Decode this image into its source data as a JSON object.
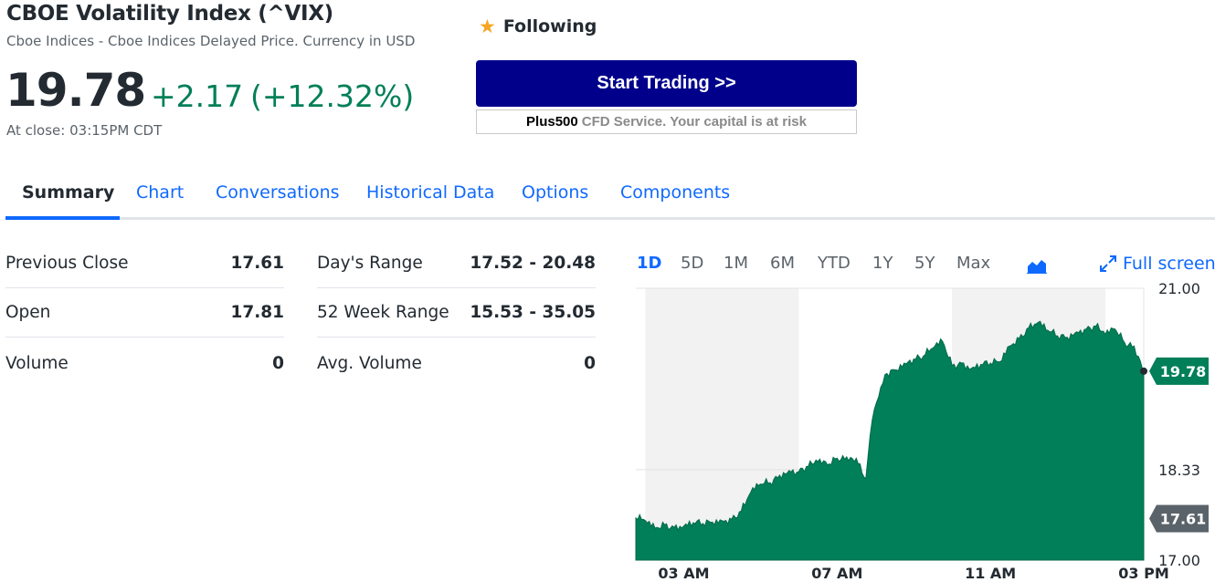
{
  "quote": {
    "title": "CBOE Volatility Index (^VIX)",
    "subtitle": "Cboe Indices - Cboe Indices Delayed Price. Currency in USD",
    "price": "19.78",
    "change": "+2.17",
    "change_pct": "(+12.32%)",
    "close_time": "At close: 03:15PM CDT"
  },
  "following": {
    "star_icon": "star-icon",
    "label": "Following"
  },
  "ad": {
    "button_label": "Start Trading >>",
    "brand": "Plus500",
    "disclaimer": "CFD Service. Your capital is at risk"
  },
  "tabs": [
    {
      "label": "Summary",
      "active": true
    },
    {
      "label": "Chart"
    },
    {
      "label": "Conversations"
    },
    {
      "label": "Historical Data"
    },
    {
      "label": "Options"
    },
    {
      "label": "Components"
    }
  ],
  "stats_left": [
    {
      "label": "Previous Close",
      "value": "17.61"
    },
    {
      "label": "Open",
      "value": "17.81"
    },
    {
      "label": "Volume",
      "value": "0"
    }
  ],
  "stats_right": [
    {
      "label": "Day's Range",
      "value": "17.52 - 20.48"
    },
    {
      "label": "52 Week Range",
      "value": "15.53 - 35.05"
    },
    {
      "label": "Avg. Volume",
      "value": "0"
    }
  ],
  "chart_controls": {
    "ranges": [
      "1D",
      "5D",
      "1M",
      "6M",
      "YTD",
      "1Y",
      "5Y",
      "Max"
    ],
    "active_range": "1D",
    "chart_type_icon": "area-chart-icon",
    "fullscreen_icon": "expand-icon",
    "fullscreen_label": "Full screen"
  },
  "colors": {
    "accent": "#0f69ff",
    "positive": "#007f58",
    "ad_button": "#00008b",
    "star": "#f5a623",
    "prev_close_tag": "#5b636a"
  },
  "chart_data": {
    "type": "area",
    "ylim": [
      17.0,
      21.0
    ],
    "y_ticks": [
      "21.00",
      "18.33",
      "17.00"
    ],
    "x_ticks": [
      "03 AM",
      "07 AM",
      "11 AM",
      "03 PM"
    ],
    "current_label": "19.78",
    "prev_close_label": "17.61",
    "current_value": 19.78,
    "prev_close_value": 17.61,
    "shaded_sessions": [
      [
        "02:15",
        "06:15"
      ],
      [
        "10:15",
        "14:15"
      ]
    ],
    "x_time": [
      "02:00",
      "02:15",
      "02:30",
      "02:45",
      "03:00",
      "03:15",
      "03:30",
      "03:45",
      "04:00",
      "04:15",
      "04:30",
      "04:45",
      "05:00",
      "05:15",
      "05:30",
      "05:45",
      "06:00",
      "06:15",
      "06:30",
      "06:45",
      "07:00",
      "07:15",
      "07:30",
      "07:45",
      "08:00",
      "08:10",
      "08:20",
      "08:30",
      "08:45",
      "09:00",
      "09:15",
      "09:30",
      "09:45",
      "10:00",
      "10:15",
      "10:30",
      "10:45",
      "11:00",
      "11:15",
      "11:30",
      "11:45",
      "12:00",
      "12:15",
      "12:30",
      "12:45",
      "13:00",
      "13:15",
      "13:30",
      "13:45",
      "14:00",
      "14:15",
      "14:30",
      "14:45",
      "15:00",
      "15:10",
      "15:15"
    ],
    "values": [
      17.62,
      17.58,
      17.47,
      17.52,
      17.48,
      17.5,
      17.55,
      17.54,
      17.56,
      17.58,
      17.6,
      17.72,
      18.0,
      18.12,
      18.14,
      18.25,
      18.32,
      18.3,
      18.38,
      18.45,
      18.4,
      18.5,
      18.52,
      18.5,
      18.2,
      19.06,
      19.4,
      19.73,
      19.8,
      19.9,
      19.96,
      20.0,
      20.12,
      20.22,
      19.86,
      19.9,
      19.82,
      19.88,
      19.9,
      19.92,
      20.15,
      20.26,
      20.42,
      20.5,
      20.38,
      20.3,
      20.28,
      20.36,
      20.4,
      20.44,
      20.32,
      20.4,
      20.2,
      20.15,
      19.92,
      19.78
    ]
  }
}
